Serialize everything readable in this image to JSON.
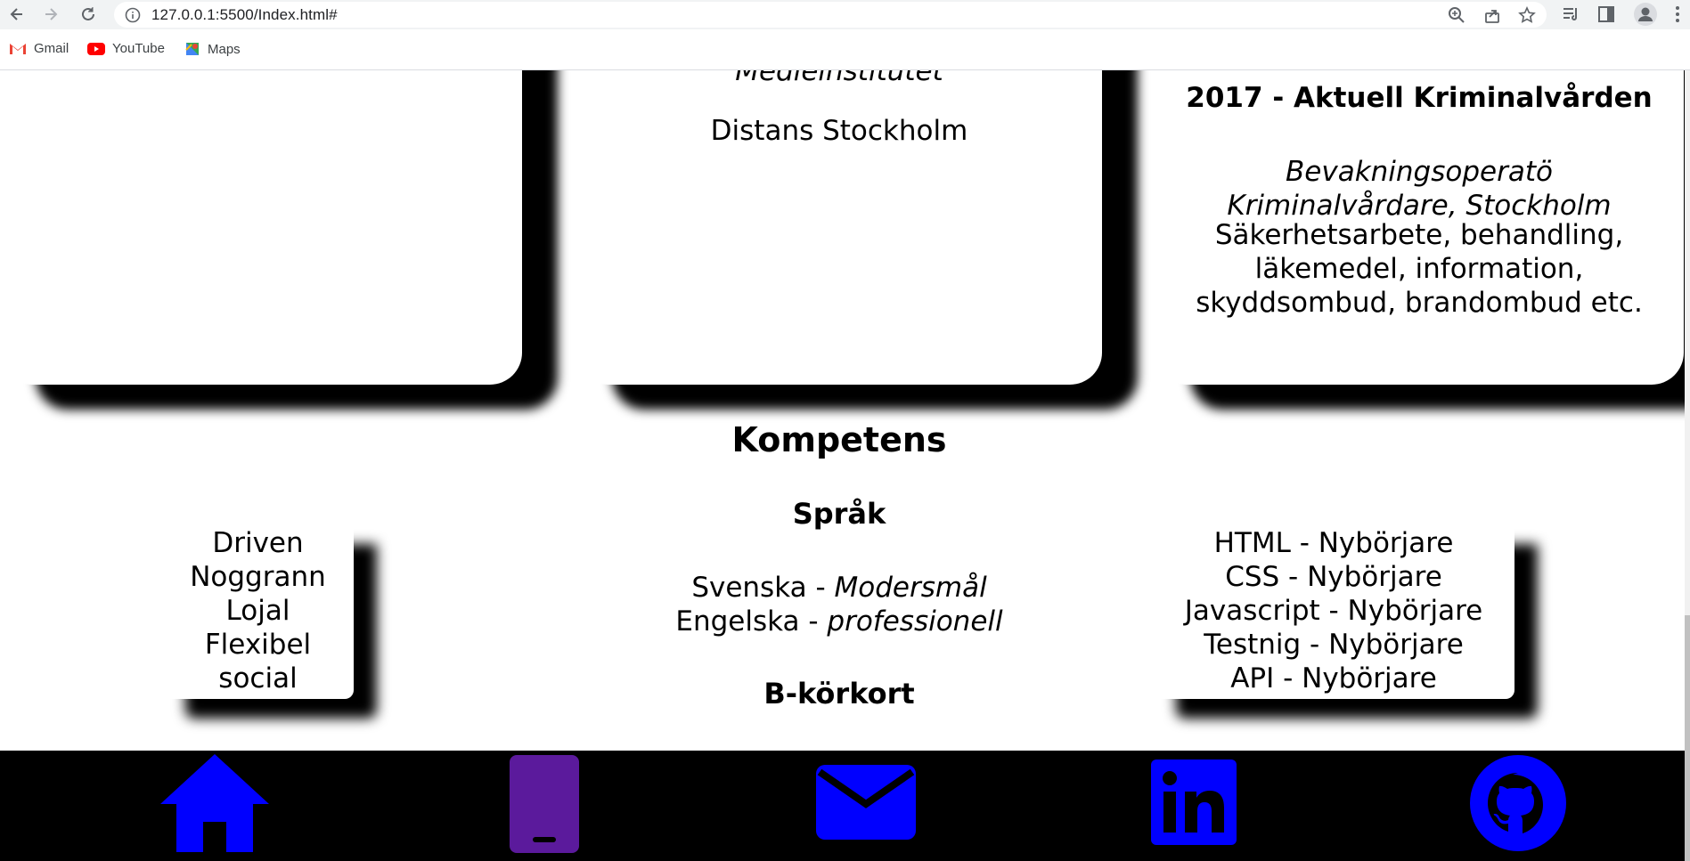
{
  "browser": {
    "url": "127.0.0.1:5500/Index.html#",
    "bookmarks": [
      {
        "label": "Gmail",
        "icon": "gmail-icon"
      },
      {
        "label": "YouTube",
        "icon": "youtube-icon"
      },
      {
        "label": "Maps",
        "icon": "maps-icon"
      }
    ]
  },
  "education": {
    "school_partial": "Medieinstitutet",
    "location": "Distans Stockholm"
  },
  "work": {
    "heading": "2017 - Aktuell Kriminalvården",
    "role_lines": [
      "Bevakningsoperatö",
      "Kriminalvårdare, Stockholm"
    ],
    "desc_lines": [
      "Säkerhetsarbete, behandling,",
      "läkemedel, information,",
      "skyddsombud, brandombud etc."
    ]
  },
  "competence": {
    "title": "Kompetens",
    "language_title": "Språk",
    "languages": [
      {
        "name": "Svenska - ",
        "level": "Modersmål"
      },
      {
        "name": "Engelska - ",
        "level": "professionell"
      }
    ],
    "license": "B-körkort",
    "traits": [
      "Driven",
      "Noggrann",
      "Lojal",
      "Flexibel",
      "social"
    ],
    "skills": [
      "HTML - Nybörjare",
      "CSS - Nybörjare",
      "Javascript - Nybörjare",
      "Testnig - Nybörjare",
      "API - Nybörjare"
    ]
  },
  "footer_icons": [
    "home-icon",
    "phone-icon",
    "mail-icon",
    "linkedin-icon",
    "github-icon"
  ],
  "colors": {
    "icon_blue": "#0000ff",
    "phone_purple": "#5b1a9c",
    "footer_bg": "#000000"
  }
}
